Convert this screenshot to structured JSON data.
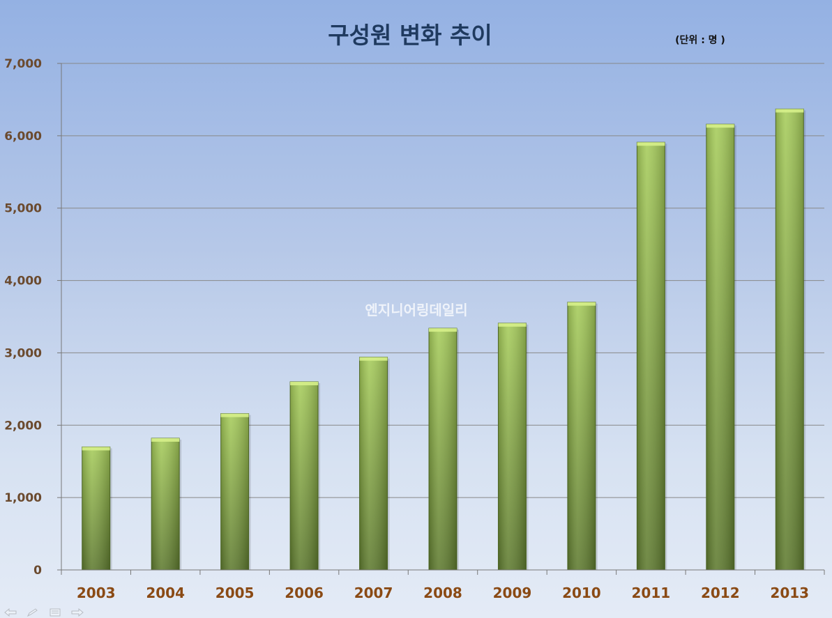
{
  "chart_data": {
    "type": "bar",
    "title": "구성원 변화 추이",
    "unit_note": "(단위 : 명 )",
    "categories": [
      "2003",
      "2004",
      "2005",
      "2006",
      "2007",
      "2008",
      "2009",
      "2010",
      "2011",
      "2012",
      "2013"
    ],
    "series": [
      {
        "values": [
          1700,
          1820,
          2160,
          2600,
          2940,
          3340,
          3410,
          3700,
          5910,
          6160,
          6370
        ]
      }
    ],
    "ylim": [
      0,
      7000
    ],
    "yticks": [
      0,
      1000,
      2000,
      3000,
      4000,
      5000,
      6000,
      7000
    ],
    "ytick_labels": [
      "0",
      "1,000",
      "2,000",
      "3,000",
      "4,000",
      "5,000",
      "6,000",
      "7,000"
    ],
    "grid": true,
    "legend": "none",
    "watermark": "엔지니어링데일리",
    "colors": {
      "bar_top": "#a6cc5a",
      "bar_bottom": "#5e7a2f",
      "bar_cap": "#d6f08a",
      "grid": "#888888",
      "ytick_text": "#6b4a2e",
      "xtick_text": "#8a4a14",
      "title_text": "#1f3a5f"
    }
  },
  "nav_icons": [
    "back-arrow-icon",
    "pen-icon",
    "menu-icon",
    "forward-arrow-icon"
  ]
}
